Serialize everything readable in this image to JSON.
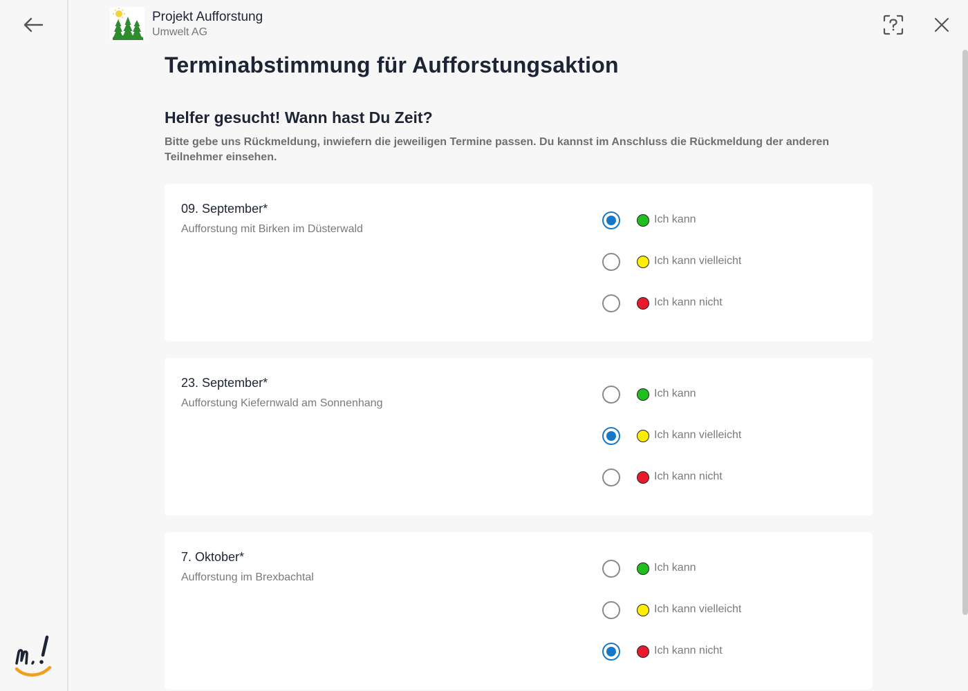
{
  "header": {
    "title": "Projekt Aufforstung",
    "subtitle": "Umwelt AG"
  },
  "page": {
    "title": "Terminabstimmung für Aufforstungsaktion",
    "section_title": "Helfer gesucht! Wann hast Du Zeit?",
    "section_desc": "Bitte gebe uns Rückmeldung, inwiefern die jeweiligen Termine passen. Du kannst im Anschluss die Rückmeldung der anderen Teilnehmer einsehen."
  },
  "option_labels": [
    "Ich kann",
    "Ich kann vielleicht",
    "Ich kann nicht"
  ],
  "option_colors": [
    "#1fbf1f",
    "#ffee00",
    "#e81a2c"
  ],
  "dates": [
    {
      "date": "09. September*",
      "desc": "Aufforstung mit Birken im Düsterwald",
      "selected": 0
    },
    {
      "date": "23. September*",
      "desc": "Aufforstung Kiefernwald am Sonnenhang",
      "selected": 1
    },
    {
      "date": "7. Oktober*",
      "desc": "Aufforstung im Brexbachtal",
      "selected": 2
    }
  ]
}
